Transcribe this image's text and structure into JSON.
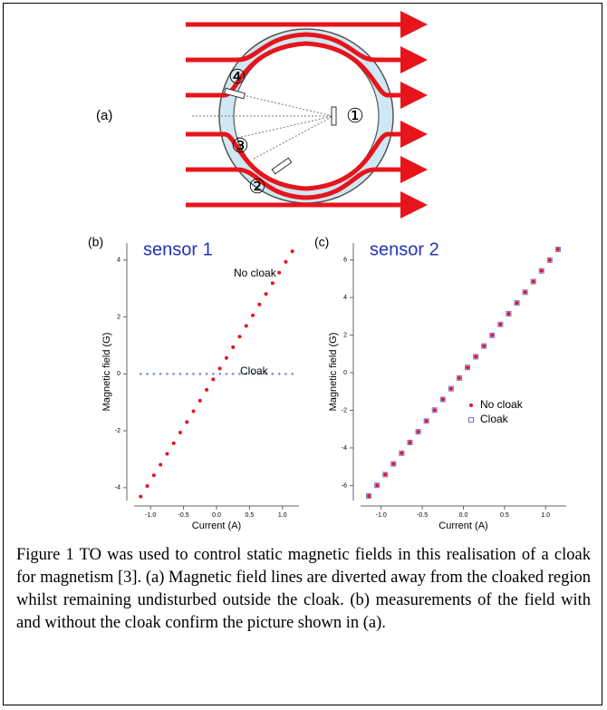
{
  "figure": {
    "diagram": {
      "panel_label": "(a)",
      "sensor_labels": [
        "①",
        "②",
        "③",
        "④"
      ]
    },
    "caption": "Figure 1 TO was used to control static magnetic fields in this realisation of a cloak for magnetism [3]. (a) Magnetic field lines are diverted away from the cloaked region whilst remaining undisturbed outside the cloak. (b) measurements of the field with and without the cloak confirm the picture shown in (a)."
  },
  "chart_data": [
    {
      "type": "scatter",
      "panel_label": "(b)",
      "title": "sensor 1",
      "x_label": "Current (A)",
      "y_label": "Magnetic field (G)",
      "annotations": [
        "No cloak",
        "Cloak"
      ],
      "x": [
        -1.15,
        -1.05,
        -0.95,
        -0.85,
        -0.75,
        -0.65,
        -0.55,
        -0.45,
        -0.35,
        -0.25,
        -0.15,
        -0.05,
        0.05,
        0.15,
        0.25,
        0.35,
        0.45,
        0.55,
        0.65,
        0.75,
        0.85,
        0.95,
        1.05,
        1.15
      ],
      "series": [
        {
          "name": "No cloak",
          "color": "#e8141b",
          "marker": "dot",
          "values": [
            -4.31,
            -3.94,
            -3.56,
            -3.19,
            -2.81,
            -2.44,
            -2.06,
            -1.69,
            -1.31,
            -0.94,
            -0.56,
            -0.19,
            0.19,
            0.56,
            0.94,
            1.31,
            1.69,
            2.06,
            2.44,
            2.81,
            3.19,
            3.56,
            3.94,
            4.31
          ]
        },
        {
          "name": "Cloak",
          "color": "#7f8fe0",
          "marker": "dot",
          "values": [
            0,
            0,
            0,
            0,
            0,
            0,
            0,
            0,
            0,
            0,
            0,
            0,
            0,
            0,
            0,
            0,
            0,
            0,
            0,
            0,
            0,
            0,
            0,
            0
          ]
        }
      ],
      "xlim": [
        -1.25,
        1.25
      ],
      "ylim": [
        -4.45,
        4.6
      ],
      "xticks": [
        {
          "value": -1,
          "label": "-1.0"
        },
        {
          "value": -0.5,
          "label": "-0.5"
        },
        {
          "value": 0,
          "label": "0.0"
        },
        {
          "value": 0.5,
          "label": "0.5"
        },
        {
          "value": 1,
          "label": "1.0"
        }
      ],
      "yticks": [
        -4,
        -2,
        0,
        2,
        4
      ],
      "legend": false
    },
    {
      "type": "scatter",
      "panel_label": "(c)",
      "title": "sensor 2",
      "x_label": "Current (A)",
      "y_label": "Magnetic field (G)",
      "x": [
        -1.15,
        -1.05,
        -0.95,
        -0.85,
        -0.75,
        -0.65,
        -0.55,
        -0.45,
        -0.35,
        -0.25,
        -0.15,
        -0.05,
        0.05,
        0.15,
        0.25,
        0.35,
        0.45,
        0.55,
        0.65,
        0.75,
        0.85,
        0.95,
        1.05,
        1.15
      ],
      "series": [
        {
          "name": "No cloak",
          "color": "#e8141b",
          "marker": "dot",
          "values": [
            -6.56,
            -5.99,
            -5.42,
            -4.85,
            -4.28,
            -3.71,
            -3.14,
            -2.57,
            -1.99,
            -1.42,
            -0.85,
            -0.28,
            0.28,
            0.85,
            1.42,
            1.99,
            2.57,
            3.14,
            3.71,
            4.28,
            4.85,
            5.42,
            5.99,
            6.56
          ]
        },
        {
          "name": "Cloak",
          "color": "#7a6fd0",
          "marker": "square",
          "values": [
            -6.56,
            -5.99,
            -5.42,
            -4.85,
            -4.28,
            -3.71,
            -3.14,
            -2.57,
            -1.99,
            -1.42,
            -0.85,
            -0.28,
            0.28,
            0.85,
            1.42,
            1.99,
            2.57,
            3.14,
            3.71,
            4.28,
            4.85,
            5.42,
            5.99,
            6.56
          ]
        }
      ],
      "xlim": [
        -1.25,
        1.25
      ],
      "ylim": [
        -6.8,
        6.9
      ],
      "xticks": [
        {
          "value": -1,
          "label": "-1.0"
        },
        {
          "value": -0.5,
          "label": "-0.5"
        },
        {
          "value": 0,
          "label": "0.0"
        },
        {
          "value": 0.5,
          "label": "0.5"
        },
        {
          "value": 1,
          "label": "1.0"
        }
      ],
      "yticks": [
        -6,
        -4,
        -2,
        0,
        2,
        4,
        6
      ],
      "legend": "lower right"
    }
  ]
}
